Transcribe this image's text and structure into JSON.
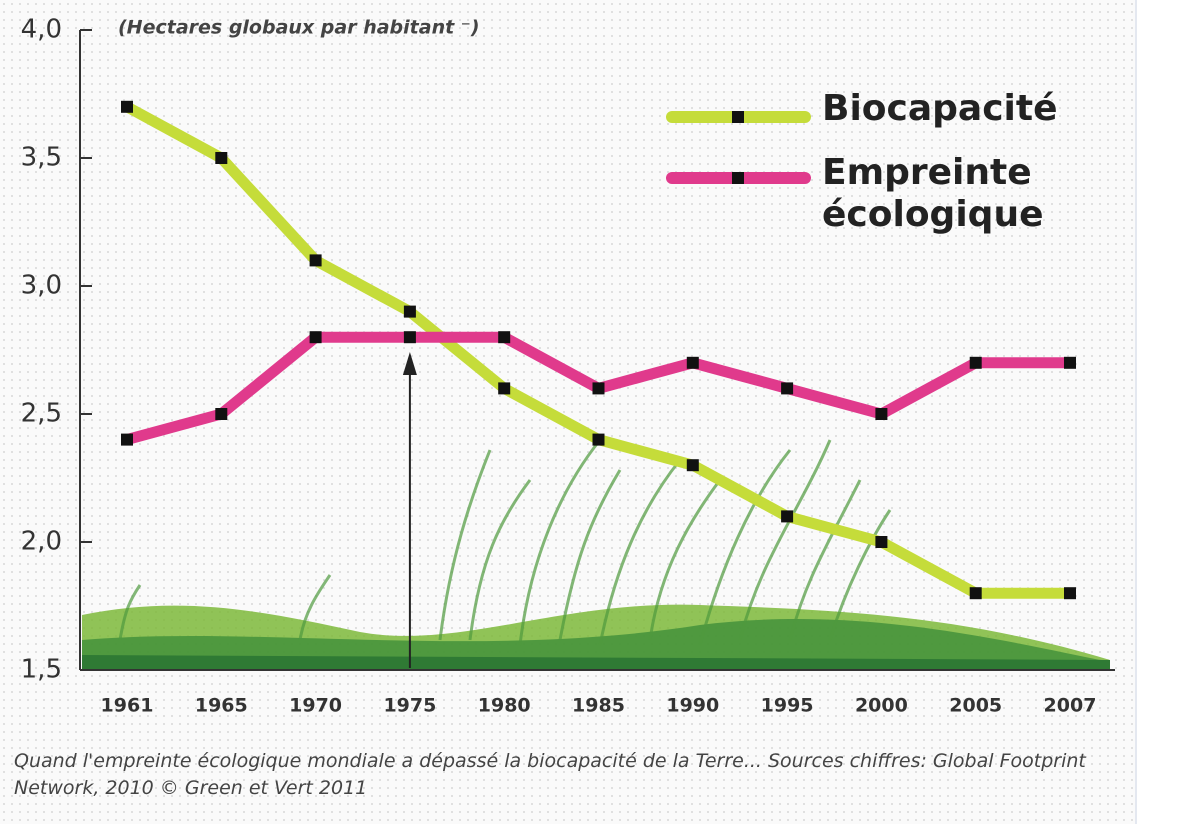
{
  "chart_data": {
    "type": "line",
    "unit_label": "(Hectares globaux par habitant ⁻)",
    "categories": [
      "1961",
      "1965",
      "1970",
      "1975",
      "1980",
      "1985",
      "1990",
      "1995",
      "2000",
      "2005",
      "2007"
    ],
    "series": [
      {
        "name": "Biocapacité",
        "color": "#c5dc3a",
        "values": [
          3.7,
          3.5,
          3.1,
          2.9,
          2.6,
          2.4,
          2.3,
          2.1,
          2.0,
          1.8,
          1.8
        ]
      },
      {
        "name": "Empreinte écologique",
        "color": "#e03a8c",
        "values": [
          2.4,
          2.5,
          2.8,
          2.8,
          2.8,
          2.6,
          2.7,
          2.6,
          2.5,
          2.7,
          2.7
        ]
      }
    ],
    "ylim": [
      1.5,
      4.0
    ],
    "yticks": [
      {
        "value": 1.5,
        "label": "1,5"
      },
      {
        "value": 2.0,
        "label": "2,0"
      },
      {
        "value": 2.5,
        "label": "2,5"
      },
      {
        "value": 3.0,
        "label": "3,0"
      },
      {
        "value": 3.5,
        "label": "3,5"
      },
      {
        "value": 4.0,
        "label": "4,0"
      }
    ],
    "caption": "Quand l'empreinte écologique mondiale a dépassé la biocapacité de la Terre... Sources chiffres: Global Footprint Network, 2010 © Green et Vert 2011"
  }
}
